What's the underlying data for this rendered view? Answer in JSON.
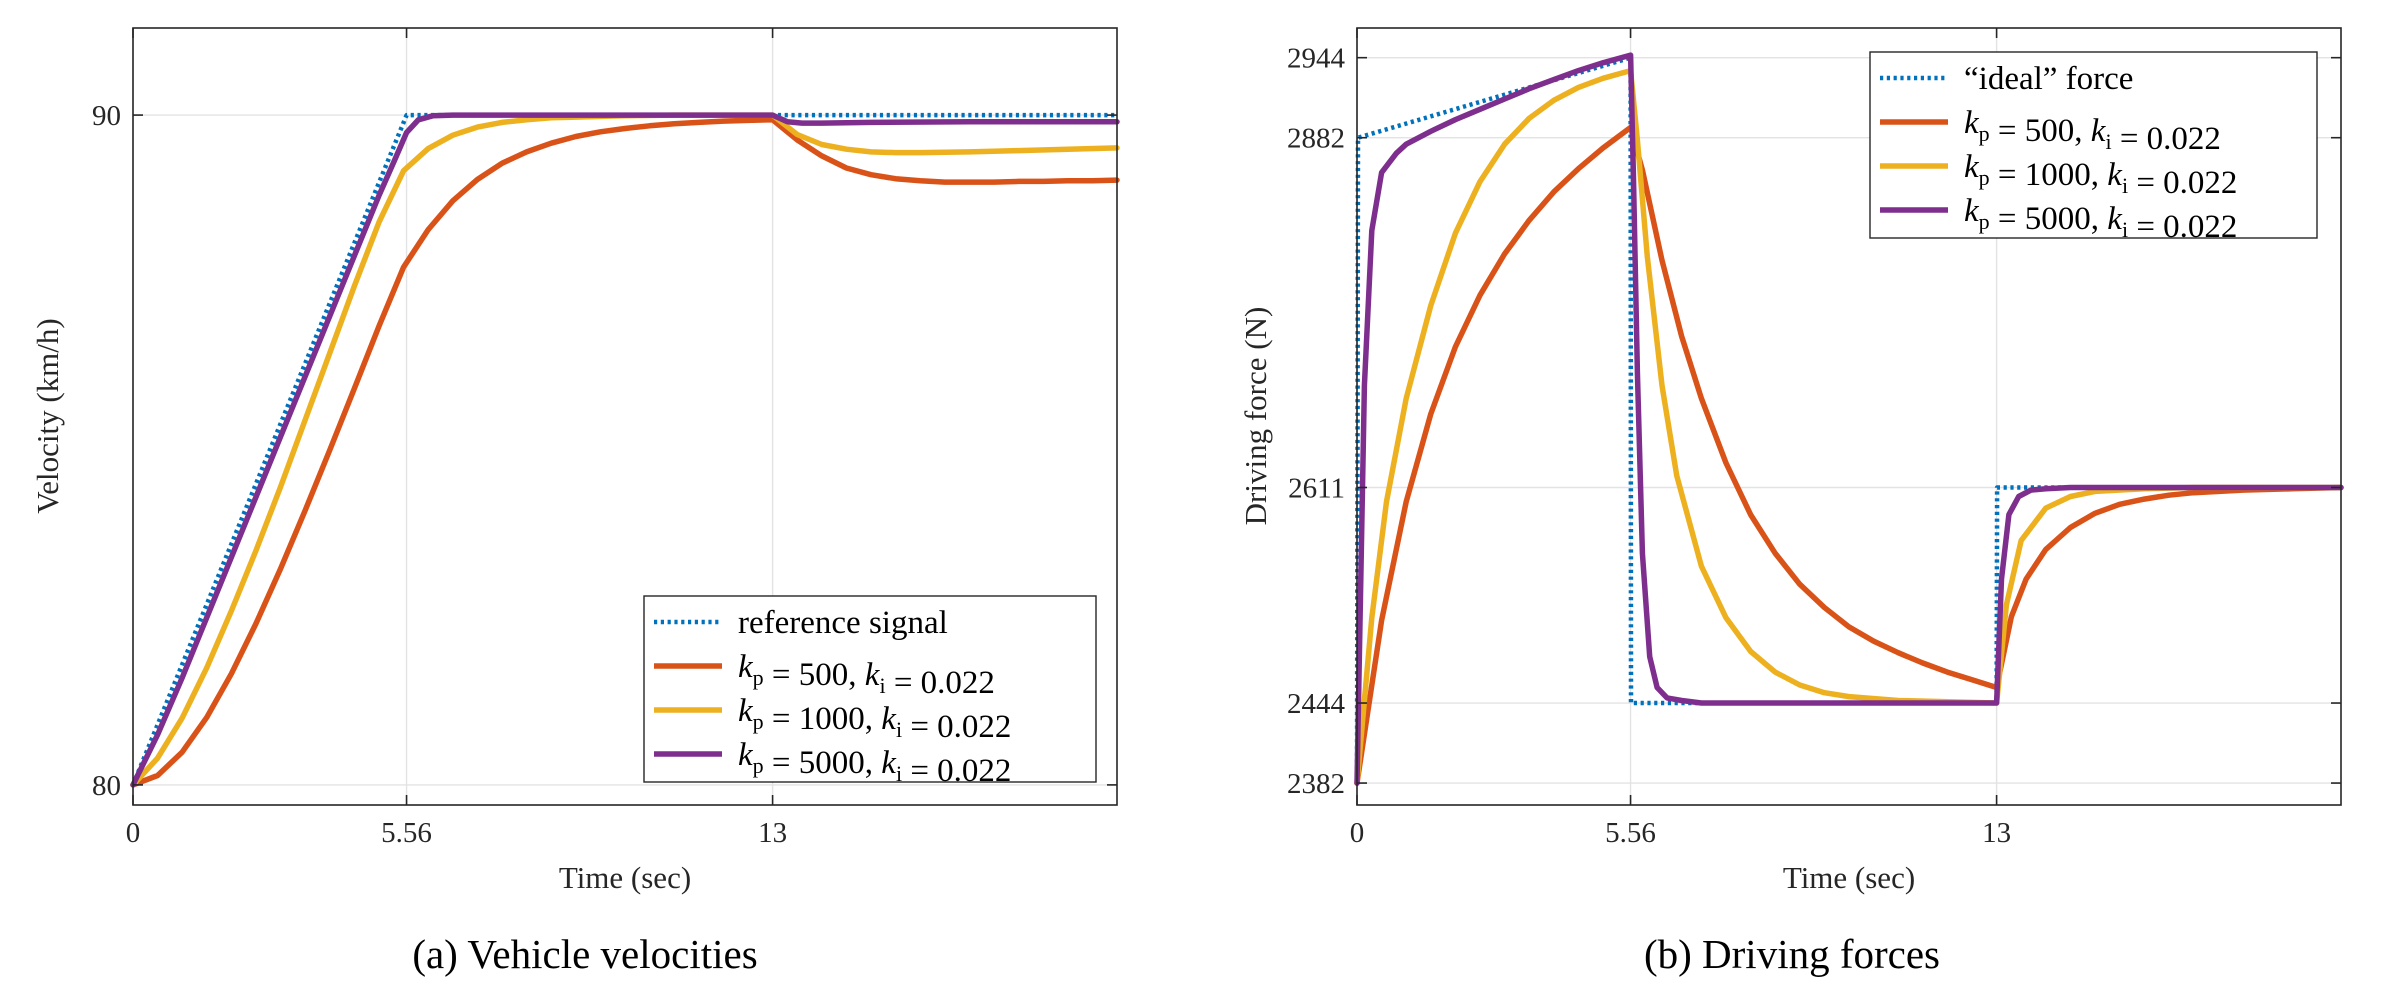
{
  "colors": {
    "reference": "#0072BD",
    "kp500": "#D95319",
    "kp1000": "#EDB120",
    "kp5000": "#7E2F8E"
  },
  "chart_data": [
    {
      "type": "line",
      "caption": "(a) Vehicle velocities",
      "xlabel": "Time (sec)",
      "ylabel": "Velocity (km/h)",
      "xlim": [
        0,
        20
      ],
      "ylim": [
        79.7,
        91.3
      ],
      "xticks": [
        0,
        5.56,
        13
      ],
      "xtick_labels": [
        "0",
        "5.56",
        "13"
      ],
      "yticks": [
        80,
        90
      ],
      "ytick_labels": [
        "80",
        "90"
      ],
      "grid": true,
      "legend_position": "bottom-right",
      "series": [
        {
          "key": "reference",
          "style": "dotted",
          "legend": {
            "main": "reference signal"
          },
          "x": [
            0,
            5.56,
            13,
            20
          ],
          "y": [
            80,
            90,
            90,
            90
          ]
        },
        {
          "key": "kp500",
          "style": "solid",
          "legend": {
            "kp": "500",
            "ki": "0.022"
          },
          "x": [
            0,
            0.5,
            1,
            1.5,
            2,
            2.5,
            3,
            3.5,
            4,
            4.5,
            5,
            5.5,
            6,
            6.5,
            7,
            7.5,
            8,
            8.5,
            9,
            9.5,
            10,
            10.5,
            11,
            11.5,
            12,
            12.5,
            13,
            13.5,
            14,
            14.5,
            15,
            15.5,
            16,
            16.5,
            17,
            17.5,
            18,
            18.5,
            19,
            19.5,
            20
          ],
          "y": [
            80,
            80.14,
            80.49,
            81.01,
            81.66,
            82.41,
            83.23,
            84.1,
            85,
            85.92,
            86.85,
            87.73,
            88.29,
            88.72,
            89.04,
            89.28,
            89.45,
            89.58,
            89.68,
            89.75,
            89.8,
            89.84,
            89.87,
            89.89,
            89.91,
            89.92,
            89.93,
            89.63,
            89.39,
            89.21,
            89.11,
            89.05,
            89.02,
            89.0,
            89.0,
            89.0,
            89.01,
            89.01,
            89.02,
            89.02,
            89.03
          ]
        },
        {
          "key": "kp1000",
          "style": "solid",
          "legend": {
            "kp": "1000",
            "ki": "0.022"
          },
          "x": [
            0,
            0.5,
            1,
            1.5,
            2,
            2.5,
            3,
            3.5,
            4,
            4.5,
            5,
            5.5,
            6,
            6.5,
            7,
            7.5,
            8,
            8.5,
            9,
            9.5,
            10,
            11,
            12,
            13,
            13.5,
            14,
            14.5,
            15,
            15.5,
            16,
            17,
            18,
            19,
            20
          ],
          "y": [
            80,
            80.4,
            81.0,
            81.75,
            82.6,
            83.5,
            84.45,
            85.45,
            86.45,
            87.45,
            88.4,
            89.17,
            89.5,
            89.7,
            89.82,
            89.89,
            89.93,
            89.96,
            89.97,
            89.98,
            89.99,
            90.0,
            90.0,
            90.0,
            89.71,
            89.56,
            89.49,
            89.45,
            89.44,
            89.44,
            89.45,
            89.47,
            89.49,
            89.51
          ]
        },
        {
          "key": "kp5000",
          "style": "solid",
          "legend": {
            "kp": "5000",
            "ki": "0.022"
          },
          "x": [
            0,
            0.5,
            1,
            1.5,
            2,
            2.5,
            3,
            3.5,
            4,
            4.5,
            5,
            5.3,
            5.56,
            5.8,
            6.1,
            6.5,
            7,
            8,
            13,
            13.3,
            13.6,
            14,
            15,
            17,
            20
          ],
          "y": [
            80,
            80.75,
            81.6,
            82.5,
            83.4,
            84.3,
            85.2,
            86.1,
            87.0,
            87.9,
            88.8,
            89.3,
            89.74,
            89.93,
            89.99,
            90.0,
            90.0,
            90.0,
            90.0,
            89.9,
            89.88,
            89.88,
            89.89,
            89.9,
            89.9
          ]
        }
      ]
    },
    {
      "type": "line",
      "caption": "(b) Driving forces",
      "xlabel": "Time (sec)",
      "ylabel": "Driving force (N)",
      "xlim": [
        0,
        20
      ],
      "ylim": [
        2365,
        2967
      ],
      "xticks": [
        0,
        5.56,
        13
      ],
      "xtick_labels": [
        "0",
        "5.56",
        "13"
      ],
      "yticks": [
        2382,
        2444,
        2611,
        2882,
        2944
      ],
      "ytick_labels": [
        "2382",
        "2444",
        "2611",
        "2882",
        "2944"
      ],
      "grid": true,
      "legend_position": "top-right",
      "series": [
        {
          "key": "reference",
          "style": "dotted",
          "legend": {
            "main": "“ideal” force"
          },
          "x": [
            0,
            0.02,
            5.56,
            5.57,
            13,
            13.01,
            20
          ],
          "y": [
            2382,
            2882,
            2944,
            2444,
            2444,
            2611,
            2611
          ]
        },
        {
          "key": "kp500",
          "style": "solid",
          "legend": {
            "kp": "500",
            "ki": "0.022"
          },
          "x": [
            0,
            0.5,
            1,
            1.5,
            2,
            2.5,
            3,
            3.5,
            4,
            4.5,
            5,
            5.56,
            5.8,
            6.2,
            6.6,
            7,
            7.5,
            8,
            8.5,
            9,
            9.5,
            10,
            10.5,
            11,
            11.5,
            12,
            12.5,
            13,
            13.3,
            13.6,
            14,
            14.5,
            15,
            15.5,
            16,
            16.5,
            17,
            18,
            19,
            20
          ],
          "y": [
            2382,
            2508,
            2600,
            2668,
            2720,
            2760,
            2792,
            2818,
            2840,
            2858,
            2874,
            2890,
            2857,
            2787,
            2728,
            2680,
            2630,
            2590,
            2560,
            2536,
            2518,
            2503,
            2492,
            2483,
            2475,
            2468,
            2462,
            2456,
            2511,
            2540,
            2563,
            2580,
            2591,
            2598,
            2602,
            2605,
            2607,
            2609,
            2610,
            2611
          ]
        },
        {
          "key": "kp1000",
          "style": "solid",
          "legend": {
            "kp": "1000",
            "ki": "0.022"
          },
          "x": [
            0,
            0.3,
            0.6,
            1,
            1.5,
            2,
            2.5,
            3,
            3.5,
            4,
            4.5,
            5,
            5.56,
            5.7,
            5.9,
            6.2,
            6.5,
            7,
            7.5,
            8,
            8.5,
            9,
            9.5,
            10,
            11,
            13,
            13.2,
            13.5,
            14,
            14.5,
            15,
            16,
            17,
            20
          ],
          "y": [
            2382,
            2510,
            2600,
            2680,
            2752,
            2808,
            2848,
            2877,
            2897,
            2911,
            2921,
            2928,
            2934,
            2880,
            2790,
            2690,
            2620,
            2550,
            2510,
            2484,
            2468,
            2458,
            2452,
            2449,
            2446,
            2444,
            2520,
            2570,
            2595,
            2604,
            2608,
            2610,
            2611,
            2611
          ]
        },
        {
          "key": "kp5000",
          "style": "solid",
          "legend": {
            "kp": "5000",
            "ki": "0.022"
          },
          "x": [
            0,
            0.15,
            0.3,
            0.5,
            0.8,
            1,
            1.5,
            2,
            2.5,
            3,
            3.5,
            4,
            4.5,
            5,
            5.56,
            5.62,
            5.7,
            5.8,
            5.95,
            6.1,
            6.3,
            6.6,
            7,
            8,
            13,
            13.1,
            13.25,
            13.45,
            13.7,
            14,
            14.5,
            15,
            20
          ],
          "y": [
            2382,
            2690,
            2810,
            2855,
            2870,
            2877,
            2887,
            2896,
            2904,
            2912,
            2920,
            2927,
            2934,
            2940,
            2946,
            2850,
            2700,
            2560,
            2480,
            2456,
            2448,
            2446,
            2444,
            2444,
            2444,
            2540,
            2590,
            2604,
            2609,
            2610,
            2611,
            2611,
            2611
          ]
        }
      ]
    }
  ]
}
